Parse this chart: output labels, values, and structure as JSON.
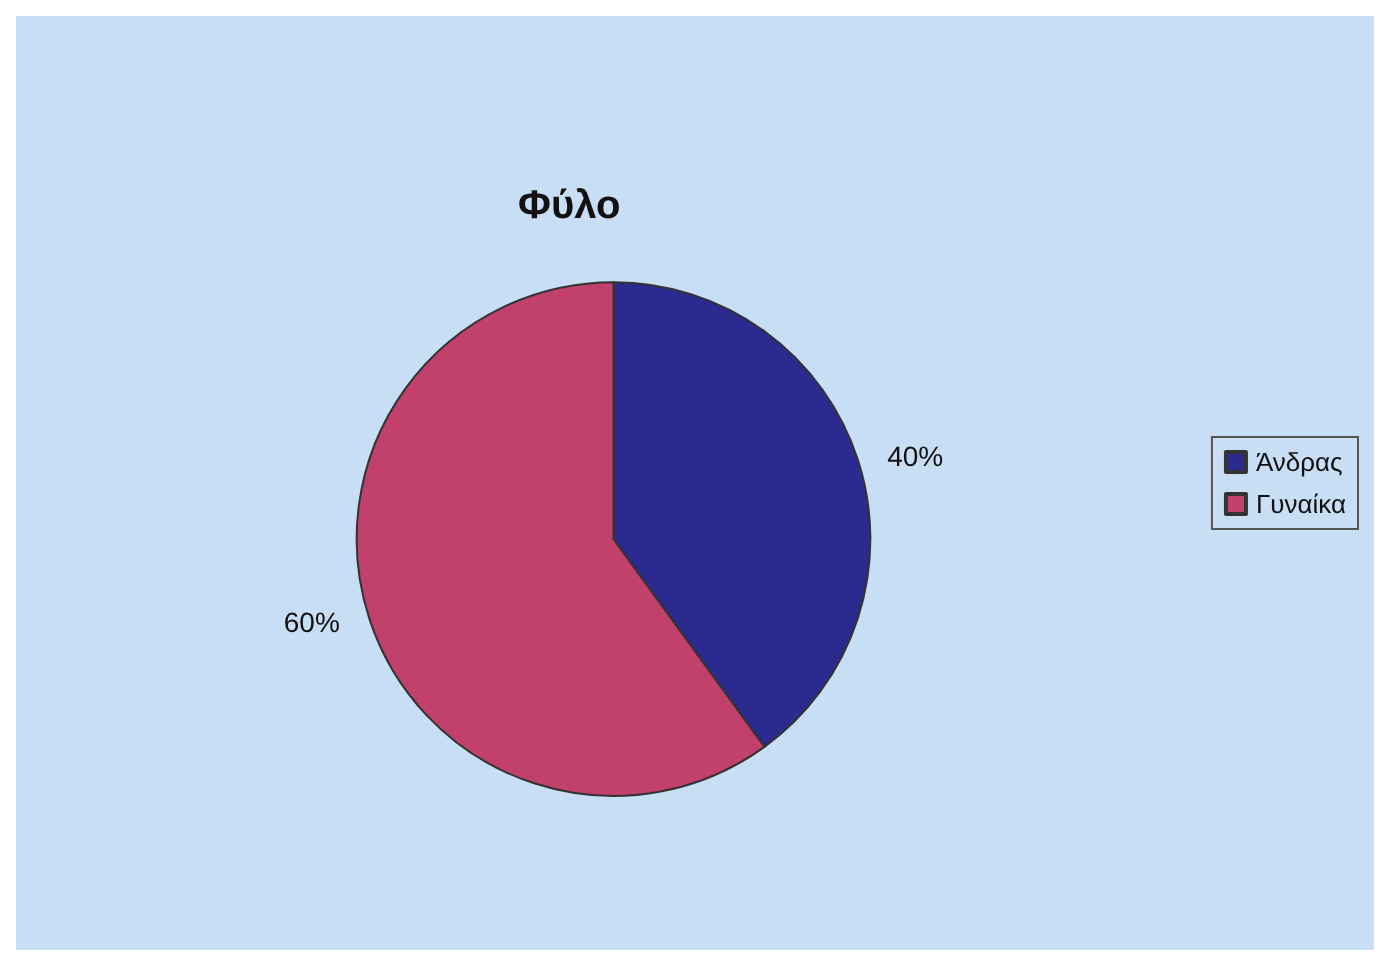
{
  "chart_data": {
    "type": "pie",
    "title": "Φύλο",
    "categories": [
      "Άνδρας",
      "Γυναίκα"
    ],
    "values": [
      40,
      60
    ],
    "colors": [
      "#2b2b8f",
      "#c2406c"
    ],
    "value_labels": [
      "40%",
      "60%"
    ],
    "legend": "right"
  }
}
